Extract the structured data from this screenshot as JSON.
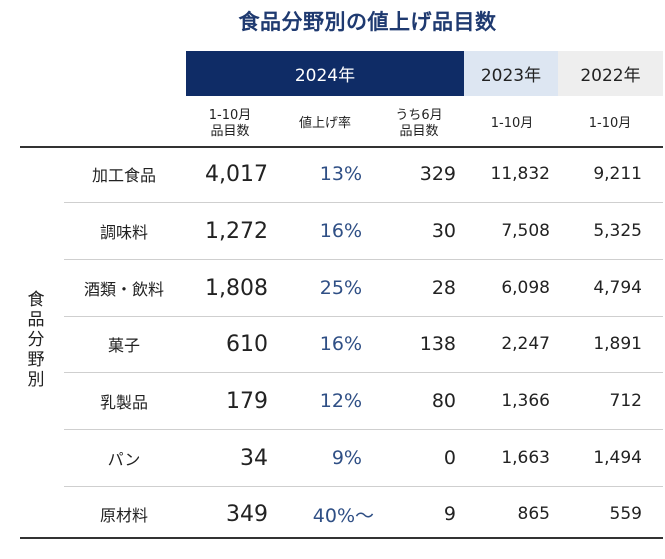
{
  "title": "食品分野別の値上げ品目数",
  "headers": {
    "year_2024": "2024年",
    "year_2023": "2023年",
    "year_2022": "2022年"
  },
  "subheaders": {
    "count_2024_line1": "1-10月",
    "count_2024_line2": "品目数",
    "rate": "値上げ率",
    "june_line1": "うち6月",
    "june_line2": "品目数",
    "period_2023": "1-10月",
    "period_2022": "1-10月"
  },
  "row_group_label": [
    "食",
    "品",
    "分",
    "野",
    "別"
  ],
  "rows": [
    {
      "name": "加工食品",
      "count_2024": "4,017",
      "rate": "13%",
      "june": "329",
      "y2023": "11,832",
      "y2022": "9,211"
    },
    {
      "name": "調味料",
      "count_2024": "1,272",
      "rate": "16%",
      "june": "30",
      "y2023": "7,508",
      "y2022": "5,325"
    },
    {
      "name": "酒類・飲料",
      "count_2024": "1,808",
      "rate": "25%",
      "june": "28",
      "y2023": "6,098",
      "y2022": "4,794"
    },
    {
      "name": "菓子",
      "count_2024": "610",
      "rate": "16%",
      "june": "138",
      "y2023": "2,247",
      "y2022": "1,891"
    },
    {
      "name": "乳製品",
      "count_2024": "179",
      "rate": "12%",
      "june": "80",
      "y2023": "1,366",
      "y2022": "712"
    },
    {
      "name": "パン",
      "count_2024": "34",
      "rate": "9%",
      "june": "0",
      "y2023": "1,663",
      "y2022": "1,494"
    },
    {
      "name": "原材料",
      "count_2024": "349",
      "rate": "40%～",
      "june": "9",
      "y2023": "865",
      "y2022": "559"
    }
  ],
  "colors": {
    "header_2024_bg": "#0f2c66",
    "header_2023_bg": "#dde6f2",
    "header_2022_bg": "#eeeeee",
    "title_color": "#1f3a70",
    "rate_text": "#2f4f85"
  }
}
